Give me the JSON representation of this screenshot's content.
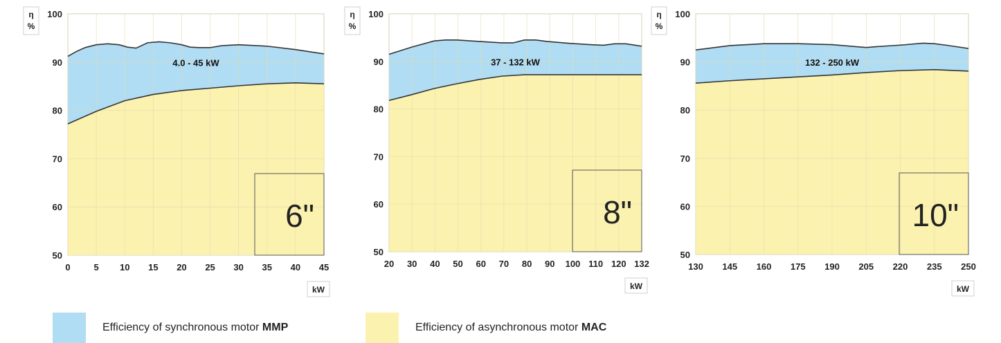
{
  "colors": {
    "sync": "#b0dcf4",
    "async": "#fbf2b0",
    "grid": "#e4dcb0",
    "curve": "#333333"
  },
  "chart_data": [
    {
      "type": "area",
      "range_label": "4.0 - 45 kW",
      "size_label": "6\"",
      "ylabel": "η\n%",
      "xlabel": "kW",
      "xlim": [
        0,
        45
      ],
      "ylim": [
        50,
        100
      ],
      "x_ticks": [
        "0",
        "5",
        "10",
        "15",
        "20",
        "25",
        "30",
        "35",
        "40",
        "45"
      ],
      "y_ticks": [
        "50",
        "60",
        "70",
        "80",
        "90",
        "100"
      ],
      "series": [
        {
          "name": "Efficiency of synchronous motor MMP",
          "x": [
            0,
            1.5,
            3,
            5,
            7,
            9,
            10.5,
            12,
            14,
            16,
            18,
            20,
            21.5,
            23,
            25,
            27,
            30,
            35,
            40,
            45
          ],
          "y": [
            91.2,
            92.2,
            93,
            93.6,
            93.8,
            93.6,
            93.1,
            92.9,
            94,
            94.2,
            94,
            93.6,
            93.1,
            93,
            93,
            93.4,
            93.6,
            93.3,
            92.6,
            91.7
          ]
        },
        {
          "name": "Efficiency of asynchronous motor MAC",
          "x": [
            0,
            5,
            10,
            15,
            20,
            25,
            30,
            35,
            40,
            45
          ],
          "y": [
            77.2,
            79.8,
            82,
            83.3,
            84.1,
            84.6,
            85.1,
            85.5,
            85.7,
            85.5
          ]
        }
      ]
    },
    {
      "type": "area",
      "range_label": "37 - 132 kW",
      "size_label": "8\"",
      "ylabel": "η\n%",
      "xlabel": "kW",
      "xlim": [
        20,
        132
      ],
      "ylim": [
        50,
        100
      ],
      "x_ticks": [
        "20",
        "30",
        "40",
        "50",
        "60",
        "70",
        "80",
        "90",
        "100",
        "110",
        "120",
        "132"
      ],
      "y_ticks": [
        "50",
        "60",
        "70",
        "80",
        "90",
        "100"
      ],
      "series": [
        {
          "name": "Efficiency of synchronous motor MMP",
          "x": [
            20,
            30,
            40,
            45,
            50,
            60,
            70,
            75,
            80,
            85,
            90,
            100,
            110,
            115,
            120,
            125,
            132
          ],
          "y": [
            91.5,
            93,
            94.3,
            94.5,
            94.5,
            94.2,
            93.9,
            93.9,
            94.5,
            94.5,
            94.2,
            93.8,
            93.5,
            93.4,
            93.7,
            93.7,
            93.2
          ]
        },
        {
          "name": "Efficiency of asynchronous motor MAC",
          "x": [
            20,
            30,
            40,
            50,
            60,
            70,
            80,
            90,
            100,
            110,
            120,
            132
          ],
          "y": [
            81.8,
            83,
            84.3,
            85.3,
            86.2,
            86.9,
            87.2,
            87.2,
            87.2,
            87.2,
            87.2,
            87.2
          ]
        }
      ]
    },
    {
      "type": "area",
      "range_label": "132 - 250 kW",
      "size_label": "10\"",
      "ylabel": "η\n%",
      "xlabel": "kW",
      "xlim": [
        130,
        250
      ],
      "ylim": [
        50,
        100
      ],
      "x_ticks": [
        "130",
        "145",
        "160",
        "175",
        "190",
        "205",
        "220",
        "235",
        "250"
      ],
      "y_ticks": [
        "50",
        "60",
        "70",
        "80",
        "90",
        "100"
      ],
      "series": [
        {
          "name": "Efficiency of synchronous motor MMP",
          "x": [
            130,
            145,
            160,
            175,
            190,
            200,
            205,
            210,
            220,
            230,
            235,
            240,
            250
          ],
          "y": [
            92.5,
            93.4,
            93.8,
            93.8,
            93.6,
            93.2,
            93,
            93.2,
            93.5,
            93.9,
            93.8,
            93.5,
            92.8
          ]
        },
        {
          "name": "Efficiency of asynchronous motor MAC",
          "x": [
            130,
            145,
            160,
            175,
            190,
            205,
            220,
            235,
            250
          ],
          "y": [
            85.6,
            86.1,
            86.5,
            86.9,
            87.3,
            87.8,
            88.2,
            88.4,
            88.1
          ]
        }
      ]
    }
  ],
  "legend": [
    {
      "text": "Efficiency of synchronous motor ",
      "bold": "MMP"
    },
    {
      "text": "Efficiency of asynchronous motor ",
      "bold": "MAC"
    }
  ]
}
